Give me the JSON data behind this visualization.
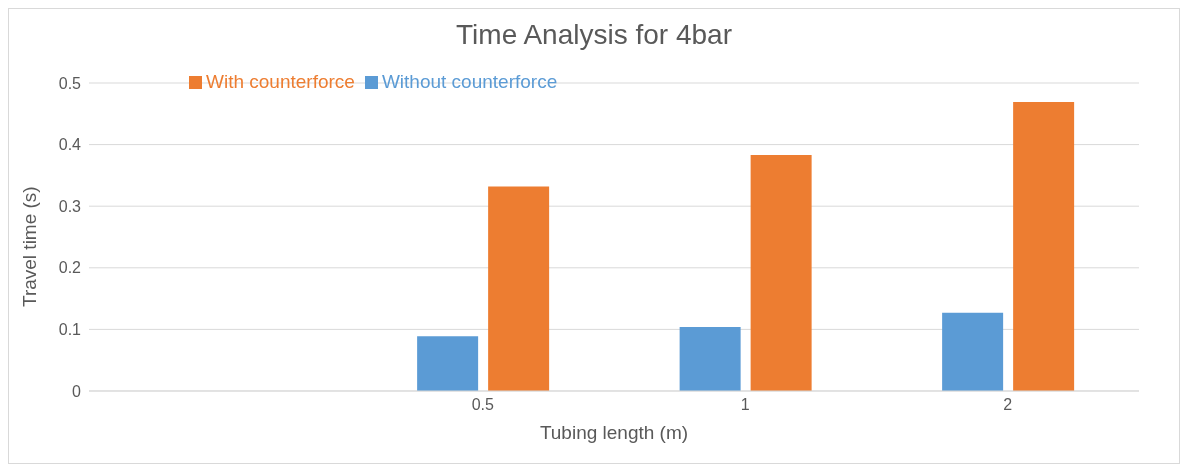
{
  "chart_data": {
    "type": "bar",
    "title": "Time Analysis for 4bar",
    "xlabel": "Tubing length (m)",
    "ylabel": "Travel time (s)",
    "categories": [
      null,
      "0.5",
      "1",
      "2"
    ],
    "series": [
      {
        "name": "Without counterforce",
        "color": "#5b9bd5",
        "values": [
          null,
          0.089,
          0.104,
          0.127
        ]
      },
      {
        "name": "With counterforce",
        "color": "#ed7d31",
        "values": [
          null,
          0.332,
          0.383,
          0.469
        ]
      }
    ],
    "ylim": [
      0,
      0.5
    ],
    "yticks": [
      0,
      0.1,
      0.2,
      0.3,
      0.4,
      0.5
    ],
    "grid": "y",
    "legend": "top left"
  }
}
